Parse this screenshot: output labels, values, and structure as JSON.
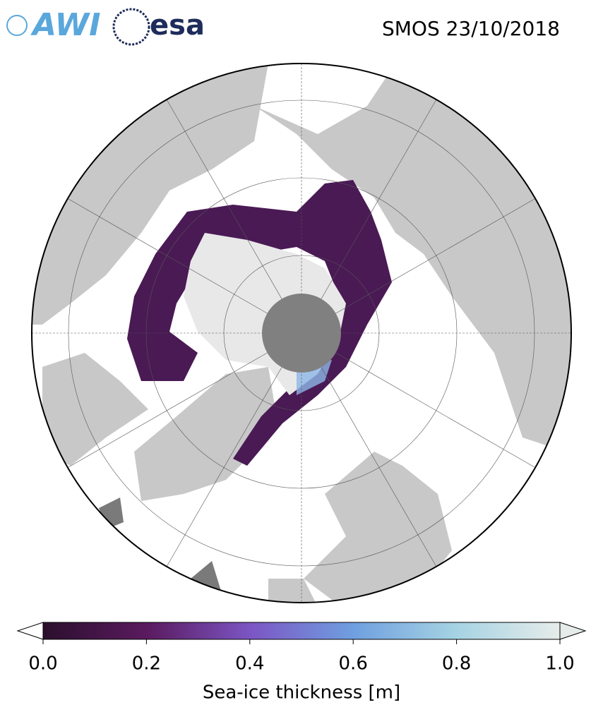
{
  "header": {
    "logos": [
      "AWI",
      "esa"
    ],
    "title": "SMOS 23/10/2018"
  },
  "colorbar": {
    "label": "Sea-ice thickness [m]",
    "lim": [
      0,
      1
    ],
    "ticks": [
      {
        "value": 0,
        "label": "0.0"
      },
      {
        "value": 0.2,
        "label": "0.2"
      },
      {
        "value": 0.4,
        "label": "0.4"
      },
      {
        "value": 0.6,
        "label": "0.6"
      },
      {
        "value": 0.8,
        "label": "0.8"
      },
      {
        "value": 1,
        "label": "1.0"
      }
    ],
    "colors": [
      "#2b0f2e",
      "#5a1a5e",
      "#7c55c4",
      "#6f9fe0",
      "#a6d3e3",
      "#e6ecea"
    ]
  }
}
